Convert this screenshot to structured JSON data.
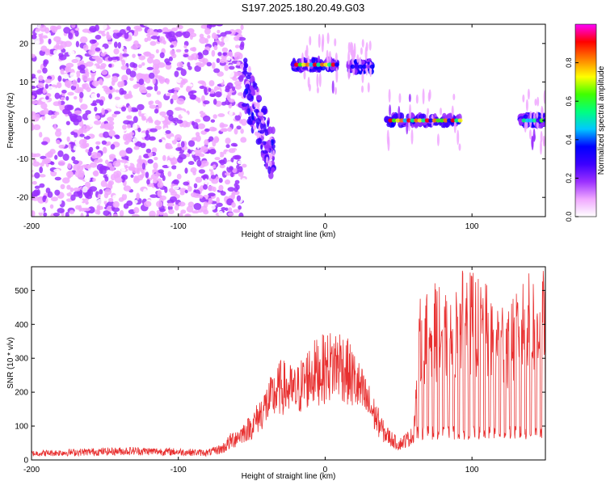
{
  "title": "S197.2025.180.20.49.G03",
  "chart_data": [
    {
      "type": "heatmap",
      "xlabel": "Height of straight line (km)",
      "ylabel": "Frequency (Hz)",
      "xlim": [
        -200,
        150
      ],
      "ylim": [
        -25,
        25
      ],
      "x_ticks": [
        -200,
        -100,
        0,
        100
      ],
      "y_ticks": [
        -20,
        -10,
        0,
        10,
        20
      ],
      "colorbar": {
        "label": "Normalized spectral amplitude",
        "range": [
          0,
          1
        ],
        "ticks": [
          "0.0",
          "0.2",
          "0.4",
          "0.6",
          "0.8"
        ],
        "colors": [
          "#ffffff",
          "#f0a8ff",
          "#9b30ff",
          "#3c00ff",
          "#0000ff",
          "#00c8ff",
          "#00ff80",
          "#40ff00",
          "#ffff00",
          "#ff8000",
          "#ff0000",
          "#ff00ff"
        ]
      },
      "features": [
        {
          "x_range": [
            -200,
            -55
          ],
          "freq_range": [
            -25,
            25
          ],
          "amplitude": 0.05,
          "kind": "noise"
        },
        {
          "x_range": [
            -55,
            -35
          ],
          "freq_range": [
            -10,
            10
          ],
          "amplitude": 0.25,
          "kind": "descending"
        },
        {
          "x_range": [
            -22,
            8
          ],
          "freq": 14.5,
          "amplitude": 0.9,
          "kind": "tone"
        },
        {
          "x_range": [
            16,
            32
          ],
          "freq": 14,
          "amplitude": 0.4,
          "kind": "tone"
        },
        {
          "x_range": [
            42,
            92
          ],
          "freq": 0,
          "amplitude": 0.9,
          "kind": "tone"
        },
        {
          "x_range": [
            133,
            150
          ],
          "freq": 0,
          "amplitude": 0.6,
          "kind": "tone"
        }
      ]
    },
    {
      "type": "line",
      "xlabel": "Height of straight line (km)",
      "ylabel": "SNR (10 * v/v)",
      "xlim": [
        -200,
        150
      ],
      "ylim": [
        0,
        570
      ],
      "x_ticks": [
        -200,
        -100,
        0,
        100
      ],
      "y_ticks": [
        0,
        100,
        200,
        300,
        400,
        500
      ],
      "series_color": "#e83030",
      "envelope": [
        {
          "x": -200,
          "y": 20
        },
        {
          "x": -160,
          "y": 25
        },
        {
          "x": -130,
          "y": 28
        },
        {
          "x": -100,
          "y": 25
        },
        {
          "x": -80,
          "y": 22
        },
        {
          "x": -70,
          "y": 35
        },
        {
          "x": -60,
          "y": 75
        },
        {
          "x": -50,
          "y": 110
        },
        {
          "x": -40,
          "y": 180
        },
        {
          "x": -30,
          "y": 240
        },
        {
          "x": -20,
          "y": 220
        },
        {
          "x": -10,
          "y": 280
        },
        {
          "x": 0,
          "y": 300
        },
        {
          "x": 10,
          "y": 320
        },
        {
          "x": 20,
          "y": 260
        },
        {
          "x": 30,
          "y": 180
        },
        {
          "x": 40,
          "y": 90
        },
        {
          "x": 50,
          "y": 50
        },
        {
          "x": 60,
          "y": 80
        },
        {
          "x": 65,
          "y": 400
        },
        {
          "x": 75,
          "y": 420
        },
        {
          "x": 85,
          "y": 380
        },
        {
          "x": 95,
          "y": 460
        },
        {
          "x": 105,
          "y": 430
        },
        {
          "x": 115,
          "y": 400
        },
        {
          "x": 125,
          "y": 380
        },
        {
          "x": 135,
          "y": 440
        },
        {
          "x": 150,
          "y": 450
        }
      ]
    }
  ]
}
